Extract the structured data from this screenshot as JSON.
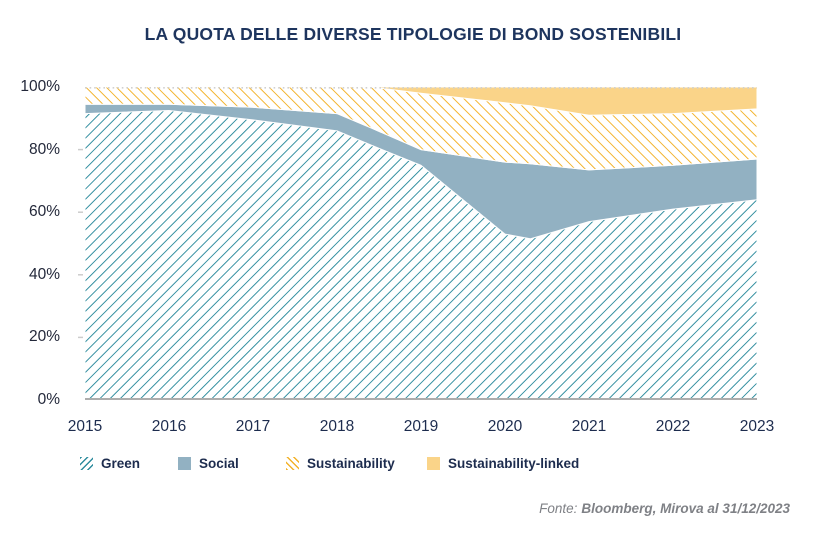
{
  "title": "LA QUOTA DELLE DIVERSE TIPOLOGIE DI BOND SOSTENIBILI",
  "footer": {
    "prefix": "Fonte:",
    "source": "Bloomberg, Mirova al 31/12/2023"
  },
  "colors": {
    "title_navy": "#1e355e",
    "green_hatch": "#2e8c9e",
    "social_solid": "#92b1c2",
    "sustainability_hatch": "#f3b229",
    "sustainability_linked_solid": "#fad489",
    "axis_line": "#adadad",
    "top_dotted_line": "#d0d0d0"
  },
  "chart_data": {
    "type": "area",
    "stacked": true,
    "normalized_to_100_percent": true,
    "title": "LA QUOTA DELLE DIVERSE TIPOLOGIE DI BOND SOSTENIBILI",
    "xlabel": "",
    "ylabel": "",
    "ylim": [
      0,
      100
    ],
    "grid": false,
    "legend_position": "bottom",
    "x": [
      2015,
      2016,
      2017,
      2018,
      2018.4,
      2019,
      2020,
      2020.3,
      2021,
      2022,
      2023
    ],
    "x_ticks": [
      "2015",
      "2016",
      "2017",
      "2018",
      "2019",
      "2020",
      "2021",
      "2022",
      "2023"
    ],
    "x_tick_values": [
      2015,
      2016,
      2017,
      2018,
      2019,
      2020,
      2021,
      2022,
      2023
    ],
    "y_ticks": [
      "100%",
      "80%",
      "60%",
      "40%",
      "20%",
      "0%"
    ],
    "y_tick_values": [
      100,
      80,
      60,
      40,
      20,
      0
    ],
    "series": [
      {
        "name": "Green",
        "style": "hatch-teal",
        "values": [
          91.5,
          92.5,
          89.5,
          86.0,
          81.5,
          75.0,
          53.0,
          51.5,
          57.0,
          61.0,
          64.0
        ]
      },
      {
        "name": "Social",
        "style": "solid-blue",
        "values": [
          3.0,
          2.0,
          4.0,
          5.5,
          5.5,
          5.0,
          23.0,
          24.0,
          16.5,
          14.0,
          13.0
        ]
      },
      {
        "name": "Sustainability",
        "style": "hatch-yellow",
        "values": [
          5.5,
          5.5,
          6.5,
          8.5,
          13.0,
          18.0,
          19.0,
          18.5,
          17.5,
          16.5,
          16.0
        ]
      },
      {
        "name": "Sustainability-linked",
        "style": "solid-yellow",
        "values": [
          0.0,
          0.0,
          0.0,
          0.0,
          0.0,
          2.0,
          5.0,
          6.0,
          9.0,
          8.5,
          7.0
        ]
      }
    ]
  }
}
